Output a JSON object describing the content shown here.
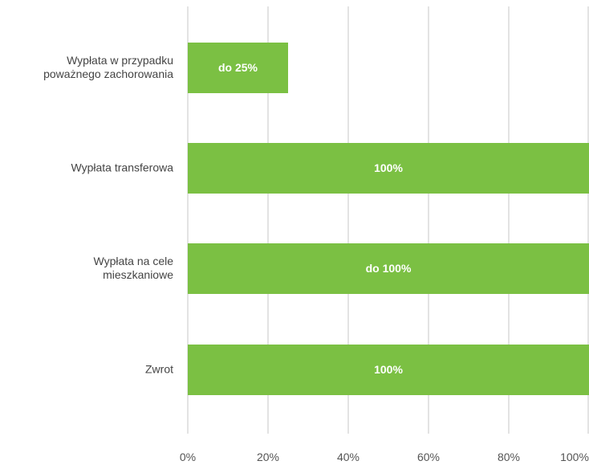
{
  "chart_data": {
    "type": "bar",
    "orientation": "horizontal",
    "categories": [
      "Wypłata w przypadku\npoważnego zachorowania",
      "Wypłata transferowa",
      "Wypłata na cele\nmieszkaniowe",
      "Zwrot"
    ],
    "values": [
      25,
      100,
      100,
      100
    ],
    "value_labels": [
      "do 25%",
      "100%",
      "do 100%",
      "100%"
    ],
    "color": "#7bc043",
    "xlim": [
      0,
      100
    ],
    "xticks": [
      {
        "value": 0,
        "label": "0%"
      },
      {
        "value": 20,
        "label": "20%"
      },
      {
        "value": 40,
        "label": "40%"
      },
      {
        "value": 60,
        "label": "60%"
      },
      {
        "value": 80,
        "label": "80%"
      },
      {
        "value": 100,
        "label": "100%"
      }
    ],
    "grid": true
  }
}
